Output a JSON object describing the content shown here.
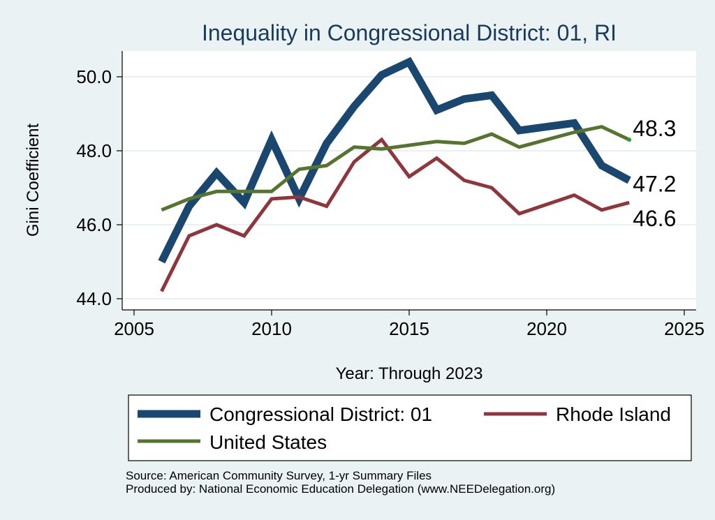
{
  "chart_data": {
    "type": "line",
    "title": "Inequality in Congressional District:  01, RI",
    "xlabel": "Year: Through 2023",
    "ylabel": "Gini Coefficient",
    "xlim": [
      2005,
      2025
    ],
    "ylim": [
      44.0,
      50.5
    ],
    "x_ticks": [
      "2005",
      "2010",
      "2015",
      "2020",
      "2025"
    ],
    "y_ticks": [
      "44.0",
      "46.0",
      "48.0",
      "50.0"
    ],
    "grid": true,
    "legend_position": "bottom",
    "series": [
      {
        "name": "Congressional District:  01",
        "color": "#1a476f",
        "end_label": "47.2",
        "x": [
          2006,
          2007,
          2008,
          2009,
          2010,
          2011,
          2012,
          2013,
          2014,
          2015,
          2016,
          2017,
          2018,
          2019,
          2020,
          2021,
          2022,
          2023
        ],
        "y": [
          45.0,
          46.5,
          47.4,
          46.6,
          48.3,
          46.7,
          48.2,
          49.2,
          50.05,
          50.4,
          49.1,
          49.4,
          49.5,
          48.55,
          48.65,
          48.75,
          47.6,
          47.2
        ]
      },
      {
        "name": "Rhode Island",
        "color": "#90353b",
        "end_label": "46.6",
        "x": [
          2006,
          2007,
          2008,
          2009,
          2010,
          2011,
          2012,
          2013,
          2014,
          2015,
          2016,
          2017,
          2018,
          2019,
          2020,
          2021,
          2022,
          2023
        ],
        "y": [
          44.2,
          45.7,
          46.0,
          45.7,
          46.7,
          46.75,
          46.5,
          47.7,
          48.3,
          47.3,
          47.8,
          47.2,
          47.0,
          46.3,
          46.55,
          46.8,
          46.4,
          46.6
        ]
      },
      {
        "name": "United States",
        "color": "#55752f",
        "end_label": "48.3",
        "x": [
          2006,
          2007,
          2008,
          2009,
          2010,
          2011,
          2012,
          2013,
          2014,
          2015,
          2016,
          2017,
          2018,
          2019,
          2020,
          2021,
          2022,
          2023
        ],
        "y": [
          46.4,
          46.7,
          46.9,
          46.9,
          46.9,
          47.5,
          47.6,
          48.1,
          48.05,
          48.15,
          48.25,
          48.2,
          48.45,
          48.1,
          48.3,
          48.5,
          48.65,
          48.3
        ]
      }
    ]
  },
  "source": {
    "line1": "Source: American Community Survey, 1-yr Summary Files",
    "line2": "Produced by: National Economic Education Delegation (www.NEEDelegation.org)"
  }
}
